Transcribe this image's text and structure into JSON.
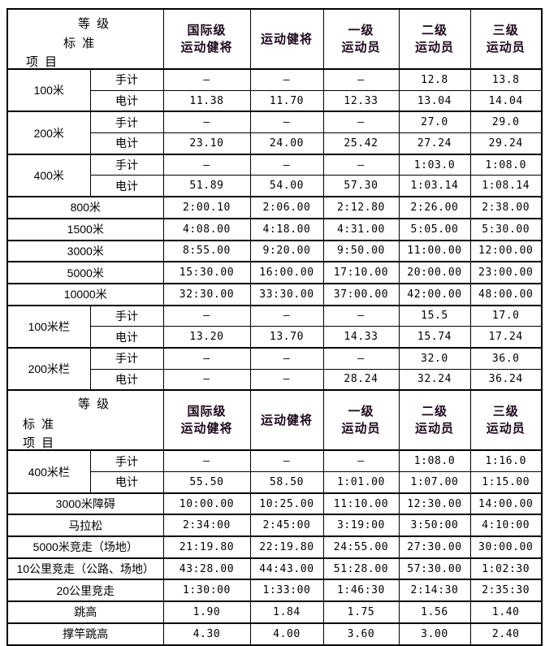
{
  "colors": {
    "background": "#ffffff",
    "border": "#000000",
    "header_text": "#1d081d",
    "body_text": "#000000"
  },
  "header": {
    "grade_label": "等 级",
    "standard_label": "标 准",
    "event_label": "项 目",
    "columns": [
      {
        "lines": [
          "国际级",
          "运动健将"
        ]
      },
      {
        "lines": [
          "运动健将"
        ]
      },
      {
        "lines": [
          "一级",
          "运动员"
        ]
      },
      {
        "lines": [
          "二级",
          "运动员"
        ]
      },
      {
        "lines": [
          "三级",
          "运动员"
        ]
      }
    ]
  },
  "timing_labels": {
    "hand": "手计",
    "electric": "电计"
  },
  "sections": [
    {
      "rows": [
        {
          "event": "100米",
          "rowspan": 2,
          "sub": "手计",
          "values": [
            "–",
            "–",
            "–",
            "12.8",
            "13.8"
          ]
        },
        {
          "sub": "电计",
          "values": [
            "11.38",
            "11.70",
            "12.33",
            "13.04",
            "14.04"
          ]
        },
        {
          "event": "200米",
          "rowspan": 2,
          "sub": "手计",
          "values": [
            "–",
            "–",
            "–",
            "27.0",
            "29.0"
          ]
        },
        {
          "sub": "电计",
          "values": [
            "23.10",
            "24.00",
            "25.42",
            "27.24",
            "29.24"
          ]
        },
        {
          "event": "400米",
          "rowspan": 2,
          "sub": "手计",
          "values": [
            "–",
            "–",
            "–",
            "1:03.0",
            "1:08.0"
          ]
        },
        {
          "sub": "电计",
          "values": [
            "51.89",
            "54.00",
            "57.30",
            "1:03.14",
            "1:08.14"
          ]
        },
        {
          "event": "800米",
          "values": [
            "2:00.10",
            "2:06.00",
            "2:12.80",
            "2:26.00",
            "2:38.00"
          ]
        },
        {
          "event": "1500米",
          "values": [
            "4:08.00",
            "4:18.00",
            "4:31.00",
            "5:05.00",
            "5:30.00"
          ]
        },
        {
          "event": "3000米",
          "values": [
            "8:55.00",
            "9:20.00",
            "9:50.00",
            "11:00.00",
            "12:00.00"
          ]
        },
        {
          "event": "5000米",
          "values": [
            "15:30.00",
            "16:00.00",
            "17:10.00",
            "20:00.00",
            "23:00.00"
          ]
        },
        {
          "event": "10000米",
          "values": [
            "32:30.00",
            "33:30.00",
            "37:00.00",
            "42:00.00",
            "48:00.00"
          ]
        },
        {
          "event": "100米栏",
          "rowspan": 2,
          "sub": "手计",
          "values": [
            "–",
            "–",
            "–",
            "15.5",
            "17.0"
          ]
        },
        {
          "sub": "电计",
          "values": [
            "13.20",
            "13.70",
            "14.33",
            "15.74",
            "17.24"
          ]
        },
        {
          "event": "200米栏",
          "rowspan": 2,
          "sub": "手计",
          "values": [
            "–",
            "–",
            "–",
            "32.0",
            "36.0"
          ]
        },
        {
          "sub": "电计",
          "values": [
            "–",
            "–",
            "28.24",
            "32.24",
            "36.24"
          ]
        }
      ]
    },
    {
      "rows": [
        {
          "event": "400米栏",
          "rowspan": 2,
          "sub": "手计",
          "values": [
            "–",
            "–",
            "–",
            "1:08.0",
            "1:16.0"
          ]
        },
        {
          "sub": "电计",
          "values": [
            "55.50",
            "58.50",
            "1:01.00",
            "1:07.00",
            "1:15.00"
          ]
        },
        {
          "event": "3000米障碍",
          "values": [
            "10:00.00",
            "10:25.00",
            "11:10.00",
            "12:30.00",
            "14:00.00"
          ]
        },
        {
          "event": "马拉松",
          "values": [
            "2:34:00",
            "2:45:00",
            "3:19:00",
            "3:50:00",
            "4:10:00"
          ]
        },
        {
          "event": "5000米竞走（场地）",
          "values": [
            "21:19.80",
            "22:19.80",
            "24:55.00",
            "27:30.00",
            "30:00.00"
          ]
        },
        {
          "event": "10公里竞走（公路、场地）",
          "values": [
            "43:28.00",
            "44:43.00",
            "51:28.00",
            "57:30.00",
            "1:02:30"
          ]
        },
        {
          "event": "20公里竞走",
          "values": [
            "1:30:00",
            "1:33:00",
            "1:46:30",
            "2:14:30",
            "2:35:30"
          ]
        },
        {
          "event": "跳高",
          "values": [
            "1.90",
            "1.84",
            "1.75",
            "1.56",
            "1.40"
          ]
        },
        {
          "event": "撑竿跳高",
          "values": [
            "4.30",
            "4.00",
            "3.60",
            "3.00",
            "2.40"
          ]
        }
      ]
    }
  ]
}
